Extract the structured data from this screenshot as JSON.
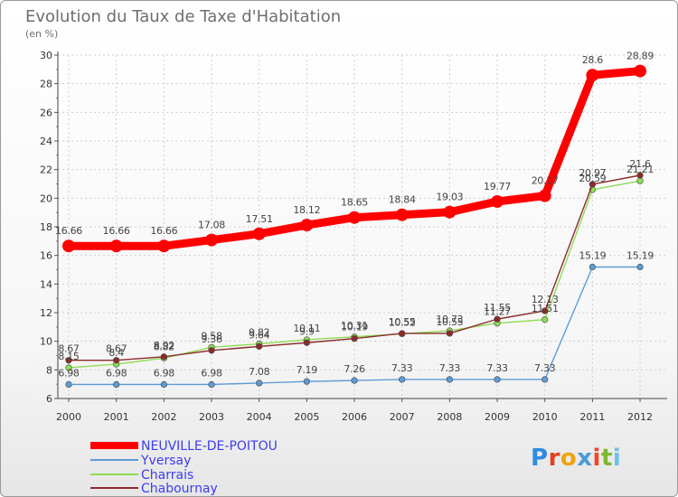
{
  "chart_data": {
    "type": "line",
    "title": "Evolution du Taux de Taxe d'Habitation",
    "subtitle": "(en %)",
    "x": [
      "2000",
      "2001",
      "2002",
      "2003",
      "2004",
      "2005",
      "2006",
      "2007",
      "2008",
      "2009",
      "2010",
      "2011",
      "2012"
    ],
    "ylim": [
      6,
      30
    ],
    "yticks": [
      6,
      8,
      10,
      12,
      14,
      16,
      18,
      20,
      22,
      24,
      26,
      28,
      30
    ],
    "legend_position": "bottom-left",
    "series": [
      {
        "name": "NEUVILLE-DE-POITOU",
        "color": "#ff0000",
        "values": [
          16.66,
          16.66,
          16.66,
          17.08,
          17.51,
          18.12,
          18.65,
          18.84,
          19.03,
          19.77,
          20.17,
          28.6,
          28.89
        ],
        "labels": [
          "16.66",
          "16.66",
          "16.66",
          "17.08",
          "17.51",
          "18.12",
          "18.65",
          "18.84",
          "19.03",
          "19.77",
          "20.17",
          "28.6",
          "28.89"
        ]
      },
      {
        "name": "Yversay",
        "color": "#5d9cd4",
        "values": [
          6.98,
          6.98,
          6.98,
          6.98,
          7.08,
          7.19,
          7.26,
          7.33,
          7.33,
          7.33,
          7.33,
          15.19,
          15.19
        ],
        "labels": [
          "6.98",
          "6.98",
          "6.98",
          "6.98",
          "7.08",
          "7.19",
          "7.26",
          "7.33",
          "7.33",
          "7.33",
          "7.33",
          "15.19",
          "15.19"
        ]
      },
      {
        "name": "Charrais",
        "color": "#8edc55",
        "values": [
          8.15,
          8.4,
          8.82,
          9.58,
          9.82,
          10.11,
          10.31,
          10.52,
          10.73,
          11.27,
          11.51,
          20.59,
          21.21
        ],
        "labels": [
          "8.15",
          "8.4",
          "8.82",
          "9.58",
          "9.82",
          "10.11",
          "10.31",
          "10.52",
          "10.73",
          "11.27",
          "11.51",
          "20.59",
          "21.21"
        ]
      },
      {
        "name": "Chabournay",
        "color": "#8a2b2b",
        "values": [
          8.67,
          8.67,
          8.92,
          9.36,
          9.64,
          9.9,
          10.19,
          10.55,
          10.55,
          11.55,
          12.13,
          20.97,
          21.6
        ],
        "labels": [
          "8.67",
          "8.67",
          "8.92",
          "9.36",
          "9.64",
          "9.9",
          "10.19",
          "10.55",
          "10.55",
          "11.55",
          "12.13",
          "20.97",
          "21.6"
        ]
      }
    ]
  },
  "logo": {
    "letters": [
      "P",
      "r",
      "o",
      "x",
      "i",
      "t",
      "i"
    ]
  }
}
